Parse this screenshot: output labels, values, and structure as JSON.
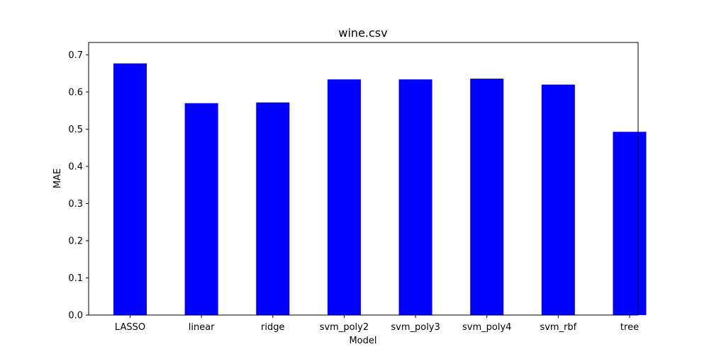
{
  "chart_data": {
    "type": "bar",
    "title": "wine.csv",
    "xlabel": "Model",
    "ylabel": "MAE",
    "categories": [
      "LASSO",
      "linear",
      "ridge",
      "svm_poly2",
      "svm_poly3",
      "svm_poly4",
      "svm_rbf",
      "tree"
    ],
    "values": [
      0.677,
      0.57,
      0.572,
      0.634,
      0.634,
      0.636,
      0.62,
      0.493
    ],
    "ylim": [
      0,
      0.7
    ],
    "yticks": [
      "0.0",
      "0.1",
      "0.2",
      "0.3",
      "0.4",
      "0.5",
      "0.6",
      "0.7"
    ],
    "bar_color": "#0000ff",
    "grid": false,
    "legend": false
  }
}
